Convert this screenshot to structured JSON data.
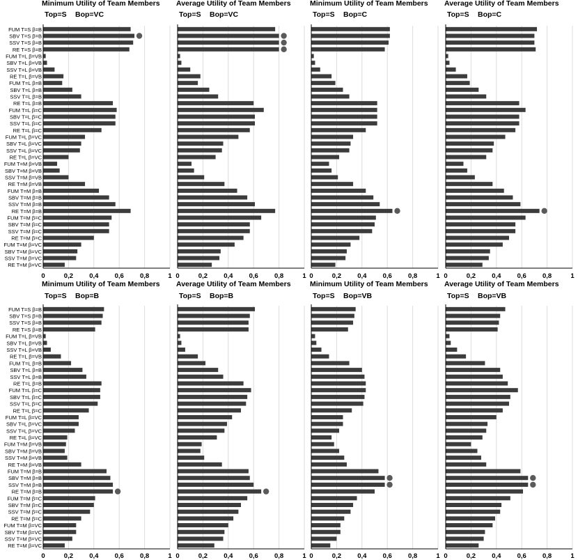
{
  "colors": {
    "bar": "#3c3c3c",
    "marker": "#5a5a5a",
    "grid": "#dcdcdc",
    "axis": "#000000",
    "text": "#000000"
  },
  "shared": {
    "xticks": [
      "0",
      "0,2",
      "0,4",
      "0,6",
      "0,8",
      "1"
    ],
    "xlim": [
      0,
      1
    ],
    "categories": [
      "FUM T=S β=B",
      "SBV T=S β=B",
      "SSV T=S β=B",
      "RE T=S β=B",
      "FUM T=L β=VB",
      "SBV T=L β=VB",
      "SSV T=L β=VB",
      "RE T=L β=VB",
      "FUM T=L β=B",
      "SBV T=L β=B",
      "SSV T=L β=B",
      "RE T=L β=B",
      "FUM T=L β=C",
      "SBV T=L β=C",
      "SSV T=L β=C",
      "RE T=L β=C",
      "FUM T=L β=VC",
      "SBV T=L β=VC",
      "SSV T=L β=VC",
      "RE T=L β=VC",
      "FUM T=M β=VB",
      "SBV T=M β=VB",
      "SSV T=M β=VB",
      "RE T=M β=VB",
      "FUM T=M β=B",
      "SBV T=M β=B",
      "SSV T=M β=B",
      "RE T=M β=B",
      "FUM T=M β=C",
      "SBV T=M β=C",
      "SSV T=M β=C",
      "RE T=M β=C",
      "FUM T=M β=VC",
      "SBV T=M β=VC",
      "SSV T=M β=VC",
      "RE T=M β=VC"
    ]
  },
  "chart_data": [
    {
      "type": "bar",
      "title": "Minimum Utility of Team Members",
      "top_label": "Top=S",
      "bop_label": "Bop=VC",
      "values": [
        0.69,
        0.72,
        0.71,
        0.68,
        0.02,
        0.03,
        0.09,
        0.16,
        0.15,
        0.23,
        0.3,
        0.55,
        0.58,
        0.57,
        0.57,
        0.46,
        0.33,
        0.3,
        0.29,
        0.2,
        0.11,
        0.13,
        0.2,
        0.33,
        0.44,
        0.52,
        0.57,
        0.69,
        0.54,
        0.52,
        0.52,
        0.4,
        0.3,
        0.27,
        0.26,
        0.17
      ],
      "markers": [
        1
      ]
    },
    {
      "type": "bar",
      "title": "Average Utility of Team Members",
      "top_label": "Top=S",
      "bop_label": "Bop=VC",
      "values": [
        0.77,
        0.8,
        0.8,
        0.8,
        0.02,
        0.03,
        0.1,
        0.18,
        0.16,
        0.25,
        0.32,
        0.6,
        0.68,
        0.61,
        0.61,
        0.57,
        0.48,
        0.36,
        0.35,
        0.3,
        0.11,
        0.13,
        0.21,
        0.37,
        0.47,
        0.55,
        0.61,
        0.77,
        0.66,
        0.57,
        0.57,
        0.52,
        0.45,
        0.34,
        0.33,
        0.27
      ],
      "markers": [
        1,
        2,
        3
      ]
    },
    {
      "type": "bar",
      "title": "Minimum Utility of Team Members",
      "top_label": "Top=S",
      "bop_label": "Bop=C",
      "values": [
        0.62,
        0.62,
        0.61,
        0.58,
        0.02,
        0.03,
        0.07,
        0.16,
        0.19,
        0.25,
        0.3,
        0.52,
        0.52,
        0.52,
        0.52,
        0.43,
        0.33,
        0.31,
        0.3,
        0.22,
        0.14,
        0.16,
        0.21,
        0.33,
        0.43,
        0.49,
        0.54,
        0.64,
        0.51,
        0.5,
        0.48,
        0.38,
        0.31,
        0.28,
        0.27,
        0.19
      ],
      "markers": [
        27
      ]
    },
    {
      "type": "bar",
      "title": "Average Utility of Team Members",
      "top_label": "Top=S",
      "bop_label": "Bop=C",
      "values": [
        0.72,
        0.7,
        0.7,
        0.71,
        0.02,
        0.03,
        0.08,
        0.17,
        0.19,
        0.26,
        0.32,
        0.58,
        0.63,
        0.58,
        0.58,
        0.55,
        0.47,
        0.38,
        0.37,
        0.32,
        0.14,
        0.17,
        0.23,
        0.37,
        0.46,
        0.53,
        0.59,
        0.74,
        0.63,
        0.55,
        0.55,
        0.5,
        0.45,
        0.35,
        0.34,
        0.29
      ],
      "markers": [
        27
      ]
    },
    {
      "type": "bar",
      "title": "Minimum Utility of Team Members",
      "top_label": "Top=S",
      "bop_label": "Bop=B",
      "values": [
        0.48,
        0.47,
        0.46,
        0.41,
        0.02,
        0.03,
        0.06,
        0.14,
        0.22,
        0.31,
        0.34,
        0.46,
        0.45,
        0.45,
        0.43,
        0.36,
        0.28,
        0.28,
        0.25,
        0.19,
        0.18,
        0.17,
        0.19,
        0.3,
        0.5,
        0.53,
        0.55,
        0.55,
        0.41,
        0.4,
        0.37,
        0.3,
        0.26,
        0.26,
        0.23,
        0.17
      ],
      "markers": [
        27
      ]
    },
    {
      "type": "bar",
      "title": "Average Utility of Team Members",
      "top_label": "Top=S",
      "bop_label": "Bop=B",
      "values": [
        0.61,
        0.57,
        0.56,
        0.56,
        0.02,
        0.03,
        0.06,
        0.16,
        0.22,
        0.32,
        0.36,
        0.52,
        0.58,
        0.55,
        0.54,
        0.5,
        0.43,
        0.39,
        0.37,
        0.31,
        0.19,
        0.18,
        0.21,
        0.35,
        0.56,
        0.57,
        0.6,
        0.66,
        0.55,
        0.5,
        0.48,
        0.44,
        0.4,
        0.37,
        0.36,
        0.29
      ],
      "markers": [
        27
      ]
    },
    {
      "type": "bar",
      "title": "Minimum Utility of Team Members",
      "top_label": "Top=S",
      "bop_label": "Bop=VB",
      "values": [
        0.35,
        0.34,
        0.33,
        0.29,
        0.03,
        0.04,
        0.08,
        0.14,
        0.3,
        0.4,
        0.42,
        0.43,
        0.43,
        0.42,
        0.41,
        0.32,
        0.25,
        0.25,
        0.22,
        0.16,
        0.18,
        0.22,
        0.26,
        0.28,
        0.53,
        0.58,
        0.58,
        0.5,
        0.36,
        0.33,
        0.31,
        0.26,
        0.23,
        0.23,
        0.2,
        0.15
      ],
      "markers": [
        25,
        26
      ]
    },
    {
      "type": "bar",
      "title": "Average Utility of Team Members",
      "top_label": "Top=S",
      "bop_label": "Bop=VB",
      "values": [
        0.47,
        0.43,
        0.42,
        0.41,
        0.03,
        0.04,
        0.09,
        0.16,
        0.31,
        0.43,
        0.45,
        0.49,
        0.57,
        0.51,
        0.5,
        0.45,
        0.4,
        0.33,
        0.32,
        0.29,
        0.2,
        0.25,
        0.28,
        0.32,
        0.59,
        0.65,
        0.65,
        0.61,
        0.51,
        0.44,
        0.43,
        0.39,
        0.37,
        0.31,
        0.3,
        0.26
      ],
      "markers": [
        25,
        26
      ]
    }
  ]
}
